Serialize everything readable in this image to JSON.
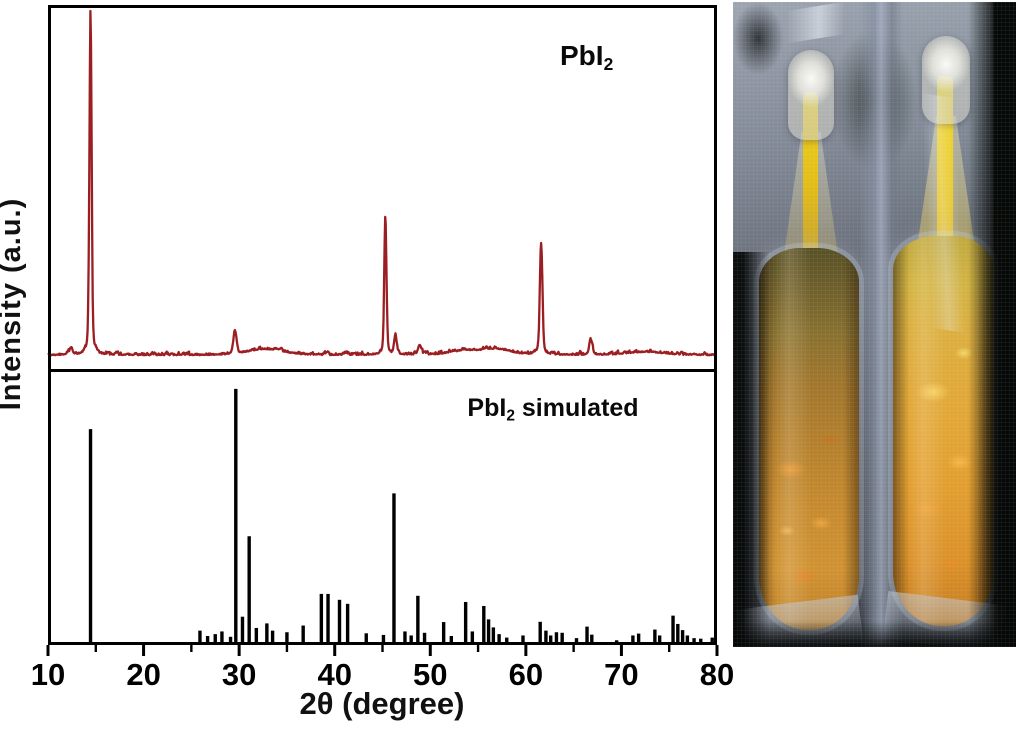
{
  "figure": {
    "panel_top_label": {
      "prefix": "PbI",
      "sub": "2"
    },
    "panel_bottom_label": {
      "prefix": "PbI",
      "sub": "2",
      "suffix": " simulated"
    }
  },
  "chart_data": {
    "type": "line",
    "description": "Powder XRD of PbI2: measured pattern (top, dark red curve) and simulated stick pattern (bottom, black)",
    "xlabel": "2θ (degree)",
    "ylabel": "Intensity (a.u.)",
    "xlim": [
      10,
      80
    ],
    "x_major_ticks": [
      10,
      20,
      30,
      40,
      50,
      60,
      70,
      80
    ],
    "x_minor_ticks": [
      15,
      25,
      35,
      45,
      55,
      65,
      75
    ],
    "grid": false,
    "legend_position": "none",
    "panels": [
      {
        "name": "PbI2 measured",
        "style": "line",
        "color": "#9b1e22",
        "peaks_2theta_height_sigma": [
          [
            12.4,
            0.02,
            0.15
          ],
          [
            14.45,
            0.97,
            0.11
          ],
          [
            29.55,
            0.06,
            0.16
          ],
          [
            32.8,
            0.017,
            1.8
          ],
          [
            45.3,
            0.395,
            0.11
          ],
          [
            46.35,
            0.055,
            0.13
          ],
          [
            48.9,
            0.026,
            0.18
          ],
          [
            53.6,
            0.012,
            1.5
          ],
          [
            57.0,
            0.016,
            1.4
          ],
          [
            61.6,
            0.315,
            0.13
          ],
          [
            66.8,
            0.044,
            0.16
          ],
          [
            72.5,
            0.009,
            1.8
          ]
        ]
      },
      {
        "name": "PbI2 simulated",
        "style": "stick",
        "color": "#000000",
        "sticks_2theta_height": [
          [
            14.45,
            0.8
          ],
          [
            25.9,
            0.048
          ],
          [
            26.7,
            0.028
          ],
          [
            27.5,
            0.035
          ],
          [
            28.2,
            0.045
          ],
          [
            29.1,
            0.025
          ],
          [
            29.65,
            0.95
          ],
          [
            30.35,
            0.1
          ],
          [
            31.05,
            0.4
          ],
          [
            31.8,
            0.058
          ],
          [
            32.9,
            0.075
          ],
          [
            33.5,
            0.048
          ],
          [
            35.0,
            0.042
          ],
          [
            36.7,
            0.067
          ],
          [
            38.6,
            0.185
          ],
          [
            39.3,
            0.185
          ],
          [
            40.5,
            0.163
          ],
          [
            41.35,
            0.148
          ],
          [
            43.3,
            0.038
          ],
          [
            45.1,
            0.032
          ],
          [
            46.2,
            0.56
          ],
          [
            47.35,
            0.045
          ],
          [
            48.0,
            0.03
          ],
          [
            48.7,
            0.178
          ],
          [
            49.4,
            0.04
          ],
          [
            51.4,
            0.08
          ],
          [
            52.2,
            0.028
          ],
          [
            53.7,
            0.155
          ],
          [
            54.4,
            0.045
          ],
          [
            55.6,
            0.14
          ],
          [
            56.1,
            0.09
          ],
          [
            56.6,
            0.06
          ],
          [
            57.2,
            0.035
          ],
          [
            58.0,
            0.022
          ],
          [
            59.7,
            0.03
          ],
          [
            61.5,
            0.081
          ],
          [
            62.1,
            0.048
          ],
          [
            62.6,
            0.03
          ],
          [
            63.2,
            0.042
          ],
          [
            63.8,
            0.04
          ],
          [
            65.3,
            0.02
          ],
          [
            66.4,
            0.063
          ],
          [
            66.9,
            0.033
          ],
          [
            69.5,
            0.012
          ],
          [
            71.2,
            0.03
          ],
          [
            71.8,
            0.037
          ],
          [
            73.5,
            0.052
          ],
          [
            74.0,
            0.03
          ],
          [
            75.4,
            0.104
          ],
          [
            75.9,
            0.073
          ],
          [
            76.4,
            0.05
          ],
          [
            76.9,
            0.03
          ],
          [
            77.6,
            0.02
          ],
          [
            78.3,
            0.018
          ],
          [
            79.5,
            0.022
          ]
        ]
      }
    ]
  },
  "photo": {
    "content": "Two vacuum-sealed glass ampoules filled with orange PbI2 crystals",
    "colors": {
      "crystals_left": "#b07c2c",
      "crystals_right": "#e0a336",
      "stem_yellow": "#ecd21e",
      "ampoule_tip": "#efefe8",
      "plastic_wrap": "#97a0b2",
      "background": "#0a0d0a"
    }
  },
  "colors": {
    "axis": "#000000",
    "curve": "#9b1e22",
    "background": "#ffffff"
  }
}
